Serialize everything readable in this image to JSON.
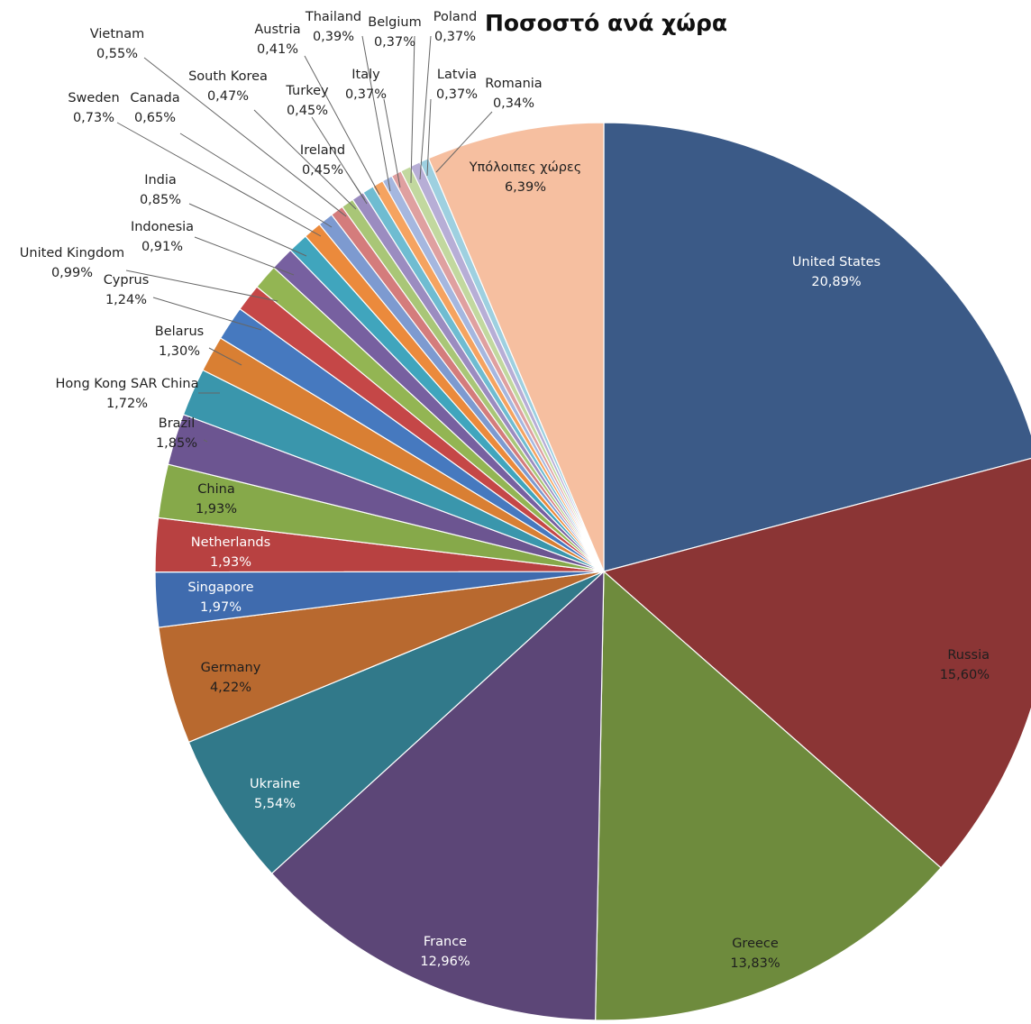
{
  "chart_data": {
    "type": "pie",
    "title": "Ποσοστό ανά χώρα",
    "slices": [
      {
        "label": "United States",
        "value_text": "20,89%",
        "value": 20.89,
        "color": "#3B5A87"
      },
      {
        "label": "Russia",
        "value_text": "15,60%",
        "value": 15.6,
        "color": "#8B3535"
      },
      {
        "label": "Greece",
        "value_text": "13,83%",
        "value": 13.83,
        "color": "#6E8B3D"
      },
      {
        "label": "France",
        "value_text": "12,96%",
        "value": 12.96,
        "color": "#5C4677"
      },
      {
        "label": "Ukraine",
        "value_text": "5,54%",
        "value": 5.54,
        "color": "#31798A"
      },
      {
        "label": "Germany",
        "value_text": "4,22%",
        "value": 4.22,
        "color": "#B8692F"
      },
      {
        "label": "Singapore",
        "value_text": "1,97%",
        "value": 1.97,
        "color": "#3F6BAE"
      },
      {
        "label": "Netherlands",
        "value_text": "1,93%",
        "value": 1.93,
        "color": "#B84141"
      },
      {
        "label": "China",
        "value_text": "1,93%",
        "value": 1.93,
        "color": "#86A94A"
      },
      {
        "label": "Brazil",
        "value_text": "1,85%",
        "value": 1.85,
        "color": "#6C5591"
      },
      {
        "label": "Hong Kong SAR China",
        "value_text": "1,72%",
        "value": 1.72,
        "color": "#3A96AC"
      },
      {
        "label": "Belarus",
        "value_text": "1,30%",
        "value": 1.3,
        "color": "#D97F33"
      },
      {
        "label": "Cyprus",
        "value_text": "1,24%",
        "value": 1.24,
        "color": "#4679BF"
      },
      {
        "label": "United Kingdom",
        "value_text": "0,99%",
        "value": 0.99,
        "color": "#C54747"
      },
      {
        "label": "Indonesia",
        "value_text": "0,91%",
        "value": 0.91,
        "color": "#93B553"
      },
      {
        "label": "India",
        "value_text": "0,85%",
        "value": 0.85,
        "color": "#7760A0"
      },
      {
        "label": "Sweden",
        "value_text": "0,73%",
        "value": 0.73,
        "color": "#40A5BD"
      },
      {
        "label": "Canada",
        "value_text": "0,65%",
        "value": 0.65,
        "color": "#EB8A3C"
      },
      {
        "label": "Vietnam",
        "value_text": "0,55%",
        "value": 0.55,
        "color": "#7D9AD0"
      },
      {
        "label": "South Korea",
        "value_text": "0,47%",
        "value": 0.47,
        "color": "#D47C7C"
      },
      {
        "label": "Turkey",
        "value_text": "0,45%",
        "value": 0.45,
        "color": "#A9C677"
      },
      {
        "label": "Ireland",
        "value_text": "0,45%",
        "value": 0.45,
        "color": "#9B8CC0"
      },
      {
        "label": "Austria",
        "value_text": "0,41%",
        "value": 0.41,
        "color": "#6FBCD1"
      },
      {
        "label": "Thailand",
        "value_text": "0,39%",
        "value": 0.39,
        "color": "#F5A360"
      },
      {
        "label": "Italy",
        "value_text": "0,37%",
        "value": 0.37,
        "color": "#A5B7DF"
      },
      {
        "label": "Belgium",
        "value_text": "0,37%",
        "value": 0.37,
        "color": "#DFA0A0"
      },
      {
        "label": "Poland",
        "value_text": "0,37%",
        "value": 0.37,
        "color": "#C2D89F"
      },
      {
        "label": "Latvia",
        "value_text": "0,37%",
        "value": 0.37,
        "color": "#B7AED6"
      },
      {
        "label": "Romania",
        "value_text": "0,34%",
        "value": 0.34,
        "color": "#9ED0E0"
      },
      {
        "label": "Υπόλοιπες χώρες",
        "value_text": "6,39%",
        "value": 6.39,
        "color": "#F6BFA0"
      }
    ]
  }
}
